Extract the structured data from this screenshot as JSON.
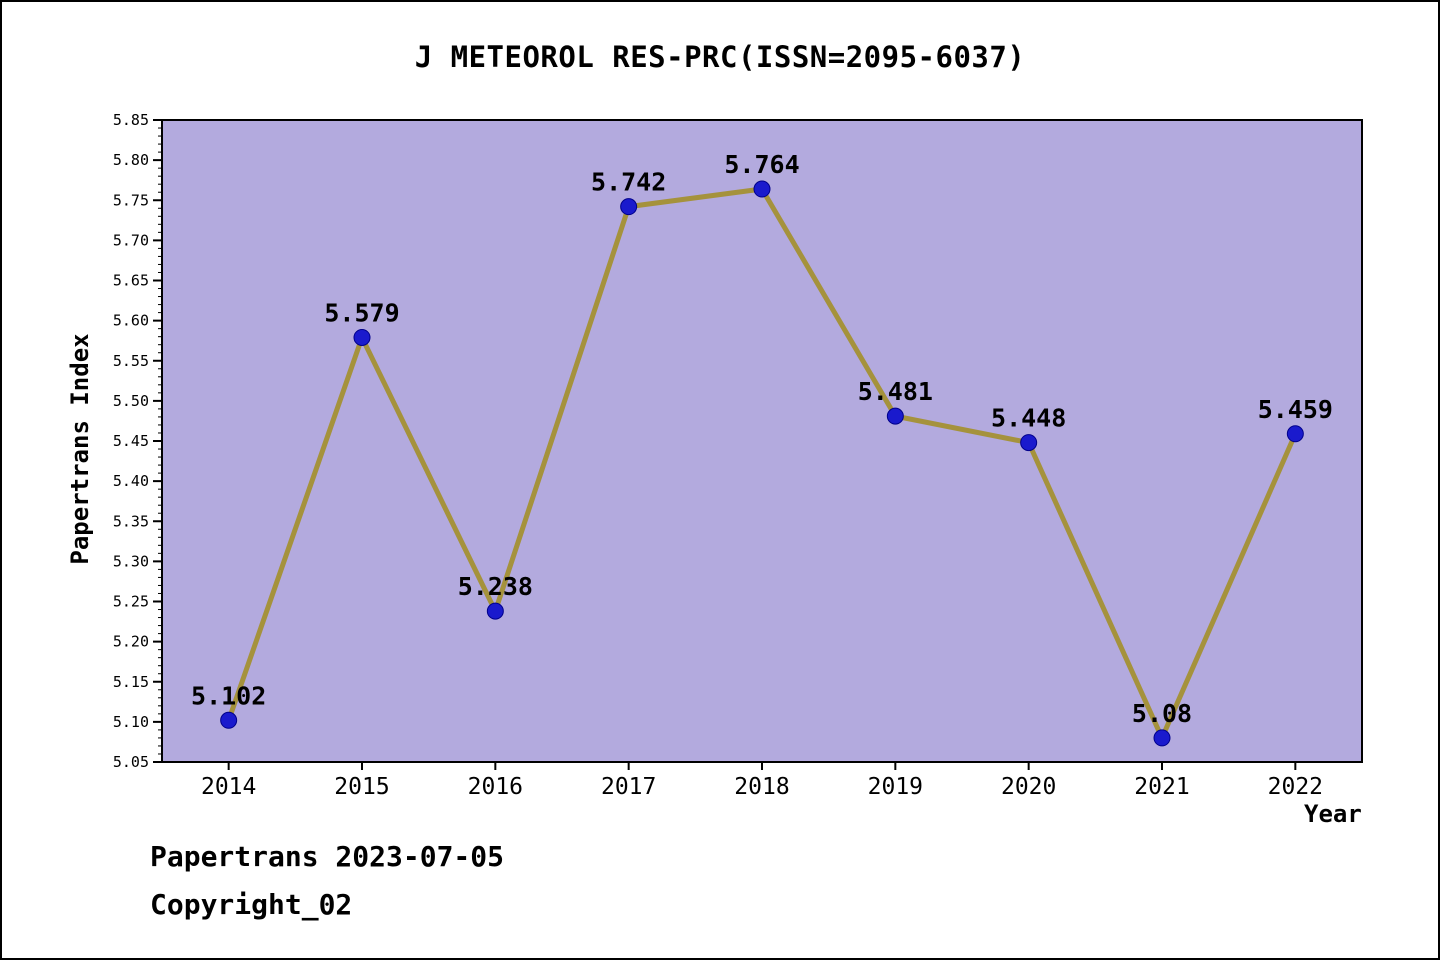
{
  "chart_data": {
    "type": "line",
    "title": "J METEOROL RES-PRC(ISSN=2095-6037)",
    "xlabel": "Year",
    "ylabel": "Papertrans Index",
    "categories": [
      2014,
      2015,
      2016,
      2017,
      2018,
      2019,
      2020,
      2021,
      2022
    ],
    "values": [
      5.102,
      5.579,
      5.238,
      5.742,
      5.764,
      5.481,
      5.448,
      5.08,
      5.459
    ],
    "point_labels": [
      "5.102",
      "5.579",
      "5.238",
      "5.742",
      "5.764",
      "5.481",
      "5.448",
      "5.08",
      "5.459"
    ],
    "ylim": [
      5.05,
      5.85
    ],
    "y_major_tick": 0.05,
    "y_minor_tick": 0.01,
    "grid": false,
    "legend": false,
    "colors": {
      "plot_background": "#b3aade",
      "line": "#a5923c",
      "marker": "#1a1acd",
      "marker_edge": "#00008b",
      "axis": "#000000",
      "text": "#000000"
    }
  },
  "footer": {
    "line1": "Papertrans 2023-07-05",
    "line2": "Copyright_02"
  }
}
